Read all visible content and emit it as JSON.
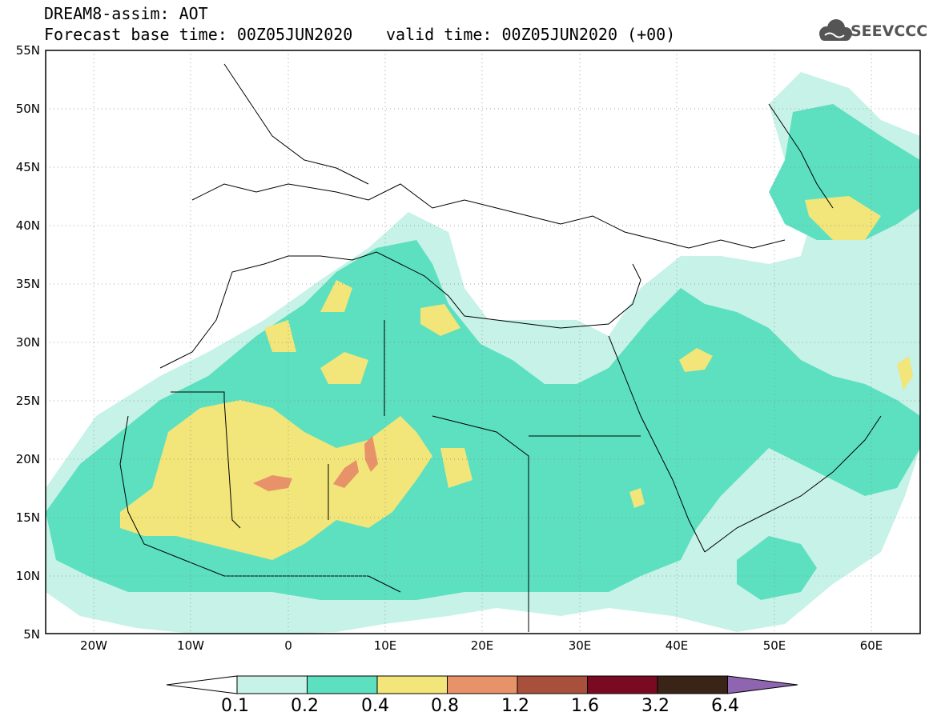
{
  "header": {
    "line1": "DREAM8-assim: AOT",
    "line2": "Forecast base time: 00Z05JUN2020",
    "line2b": "valid time: 00Z05JUN2020 (+00)"
  },
  "logo": {
    "text": "SEEVCCC",
    "icon": "cloud-icon"
  },
  "axes": {
    "lon_ticks": [
      "20W",
      "10W",
      "0",
      "10E",
      "20E",
      "30E",
      "40E",
      "50E",
      "60E"
    ],
    "lat_ticks": [
      "55N",
      "50N",
      "45N",
      "40N",
      "35N",
      "30N",
      "25N",
      "20N",
      "15N",
      "10N",
      "5N"
    ],
    "lon_range": [
      -25,
      65
    ],
    "lat_range": [
      5,
      55
    ],
    "grid": "dotted"
  },
  "colorbar": {
    "levels": [
      "0.1",
      "0.2",
      "0.4",
      "0.8",
      "1.2",
      "1.6",
      "3.2",
      "6.4"
    ],
    "colors": [
      "#ffffff",
      "#c6f2e7",
      "#5ce0c0",
      "#f2e57a",
      "#e8926a",
      "#a8503c",
      "#7a0a22",
      "#3a2418",
      "#8f64b0"
    ]
  },
  "colors": {
    "c01": "#c6f2e7",
    "c02": "#5ce0c0",
    "c04": "#f2e57a",
    "c08": "#e8926a"
  }
}
